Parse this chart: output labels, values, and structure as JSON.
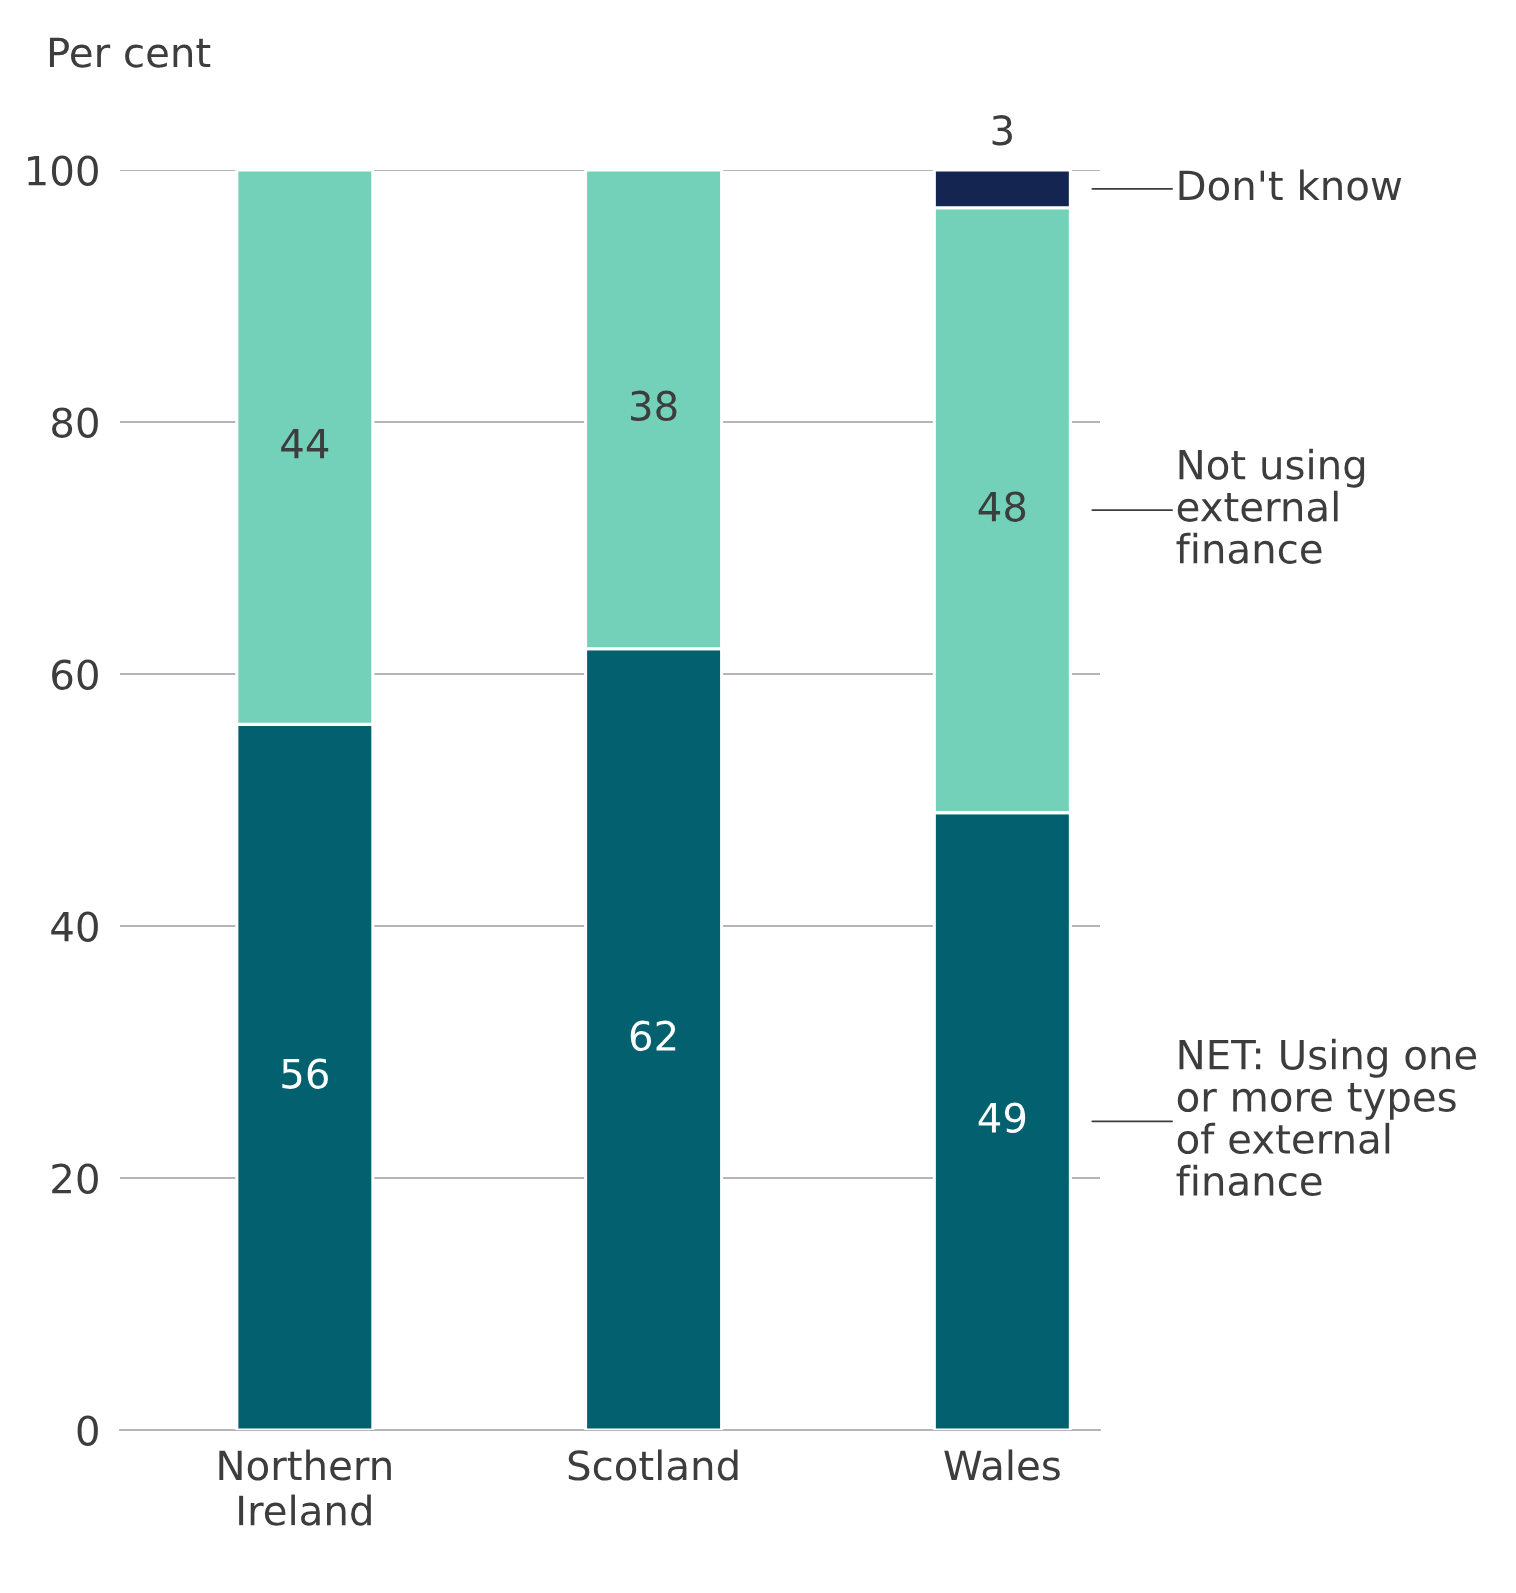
{
  "chart_data": {
    "type": "bar",
    "ylabel": "Per cent",
    "categories": [
      "Northern Ireland",
      "Scotland",
      "Wales"
    ],
    "stacked": true,
    "series": [
      {
        "name": "NET: Using one or more types of external finance",
        "color": "#03606f",
        "values": [
          56,
          62,
          49
        ]
      },
      {
        "name": "Not using external finance",
        "color": "#74d1b9",
        "values": [
          44,
          38,
          48
        ]
      },
      {
        "name": "Don't know",
        "color": "#152552",
        "values": [
          null,
          null,
          3
        ]
      }
    ],
    "ylim": [
      0,
      100
    ],
    "yticks": [
      0,
      20,
      40,
      60,
      80,
      100
    ],
    "grid": "y",
    "legend": false,
    "data_labels": true
  }
}
